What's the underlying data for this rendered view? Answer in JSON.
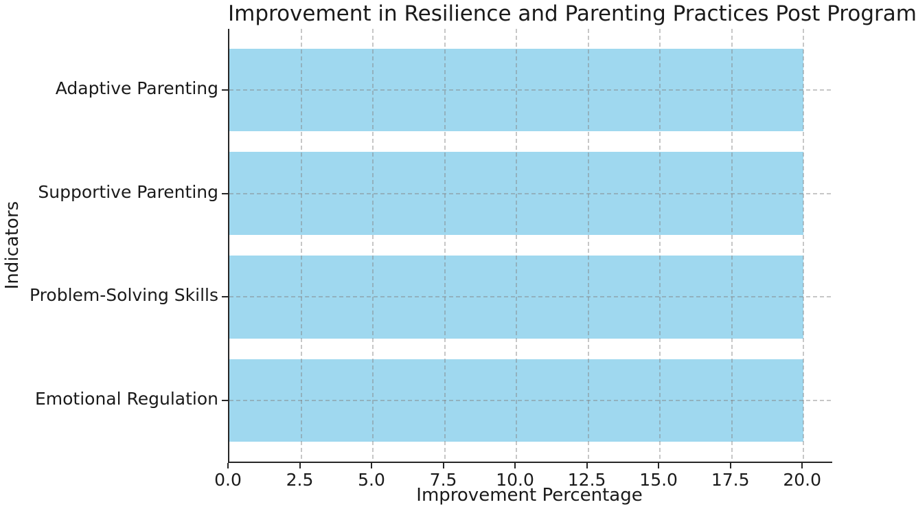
{
  "title": "Improvement in Resilience and Parenting Practices Post Program",
  "x_axis_label": "Improvement Percentage",
  "y_axis_label": "Indicators",
  "chart_data": {
    "type": "bar",
    "orientation": "horizontal",
    "title": "Improvement in Resilience and Parenting Practices Post Program",
    "xlabel": "Improvement Percentage",
    "ylabel": "Indicators",
    "categories_top_to_bottom": [
      "Adaptive Parenting",
      "Supportive Parenting",
      "Problem-Solving Skills",
      "Emotional Regulation"
    ],
    "values": [
      20.0,
      20.0,
      20.0,
      20.0
    ],
    "xlim": [
      0,
      21
    ],
    "xticks": [
      0.0,
      2.5,
      5.0,
      7.5,
      10.0,
      12.5,
      15.0,
      17.5,
      20.0
    ],
    "xtick_labels": [
      "0.0",
      "2.5",
      "5.0",
      "7.5",
      "10.0",
      "12.5",
      "15.0",
      "17.5",
      "20.0"
    ],
    "grid": "both-axes dashed, drawn over bars",
    "legend": "none",
    "bar_height_fraction": 0.8
  },
  "colors": {
    "bar_fill": "#9FD8EF",
    "grid_line": "#C9C9C9",
    "axis_spine": "#262626",
    "text": "#1A1A1A",
    "background": "#FFFFFF"
  }
}
